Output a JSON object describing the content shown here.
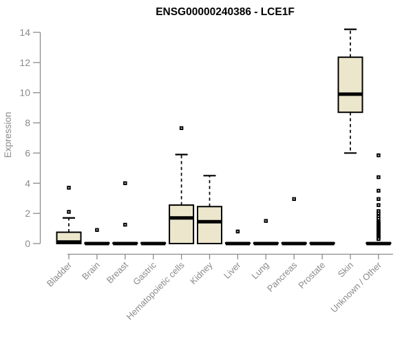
{
  "chart_data": {
    "type": "boxplot",
    "title": "ENSG00000240386 - LCE1F",
    "ylabel": "Expression",
    "xlabel": "",
    "ylim": [
      0,
      14
    ],
    "yticks": [
      0,
      2,
      4,
      6,
      8,
      10,
      12,
      14
    ],
    "grid": false,
    "legend": "none",
    "categories": [
      "Bladder",
      "Brain",
      "Breast",
      "Gastric",
      "Hematopoietic cells",
      "Kidney",
      "Liver",
      "Lung",
      "Pancreas",
      "Prostate",
      "Skin",
      "Unknown / Other"
    ],
    "series": [
      {
        "name": "Bladder",
        "min": 0,
        "q1": 0,
        "median": 0.1,
        "q3": 0.75,
        "max": 1.7,
        "outliers": [
          2.1,
          3.7
        ]
      },
      {
        "name": "Brain",
        "min": 0,
        "q1": 0,
        "median": 0,
        "q3": 0.05,
        "max": 0.05,
        "outliers": [
          0.9
        ]
      },
      {
        "name": "Breast",
        "min": 0,
        "q1": 0,
        "median": 0,
        "q3": 0.05,
        "max": 0.05,
        "outliers": [
          1.25,
          4.0
        ]
      },
      {
        "name": "Gastric",
        "min": 0,
        "q1": 0,
        "median": 0,
        "q3": 0.05,
        "max": 0.05,
        "outliers": []
      },
      {
        "name": "Hematopoietic cells",
        "min": 0,
        "q1": 0,
        "median": 1.7,
        "q3": 2.55,
        "max": 5.9,
        "outliers": [
          7.65
        ]
      },
      {
        "name": "Kidney",
        "min": 0,
        "q1": 0,
        "median": 1.45,
        "q3": 2.45,
        "max": 4.5,
        "outliers": []
      },
      {
        "name": "Liver",
        "min": 0,
        "q1": 0,
        "median": 0,
        "q3": 0.05,
        "max": 0.05,
        "outliers": [
          0.8
        ]
      },
      {
        "name": "Lung",
        "min": 0,
        "q1": 0,
        "median": 0,
        "q3": 0.05,
        "max": 0.05,
        "outliers": [
          1.5
        ]
      },
      {
        "name": "Pancreas",
        "min": 0,
        "q1": 0,
        "median": 0,
        "q3": 0.05,
        "max": 0.05,
        "outliers": [
          2.95
        ]
      },
      {
        "name": "Prostate",
        "min": 0,
        "q1": 0,
        "median": 0,
        "q3": 0.05,
        "max": 0.05,
        "outliers": []
      },
      {
        "name": "Skin",
        "min": 6.0,
        "q1": 8.7,
        "median": 9.9,
        "q3": 12.35,
        "max": 14.2,
        "outliers": []
      },
      {
        "name": "Unknown / Other",
        "min": 0,
        "q1": 0,
        "median": 0,
        "q3": 0.05,
        "max": 0.05,
        "outliers": [
          5.85,
          4.4,
          3.5,
          2.95,
          2.55,
          2.15,
          2.0,
          1.8,
          1.65,
          1.45,
          1.4,
          1.35,
          1.3,
          1.25,
          1.2,
          1.15,
          1.1,
          1.05,
          1.0,
          0.95,
          0.9,
          0.85,
          0.8,
          0.75,
          0.7,
          0.65,
          0.6,
          0.55,
          0.5,
          0.45,
          0.4,
          0.35,
          0.3
        ]
      }
    ],
    "colors": {
      "box_fill": "#ECE7CC",
      "box_border": "#000000",
      "median": "#000000",
      "outlier": "#000000",
      "whisker": "#000000",
      "axis": "#8a8a8a",
      "tick_label": "#8a8a8a",
      "title": "#000000",
      "background": "#ffffff"
    }
  }
}
